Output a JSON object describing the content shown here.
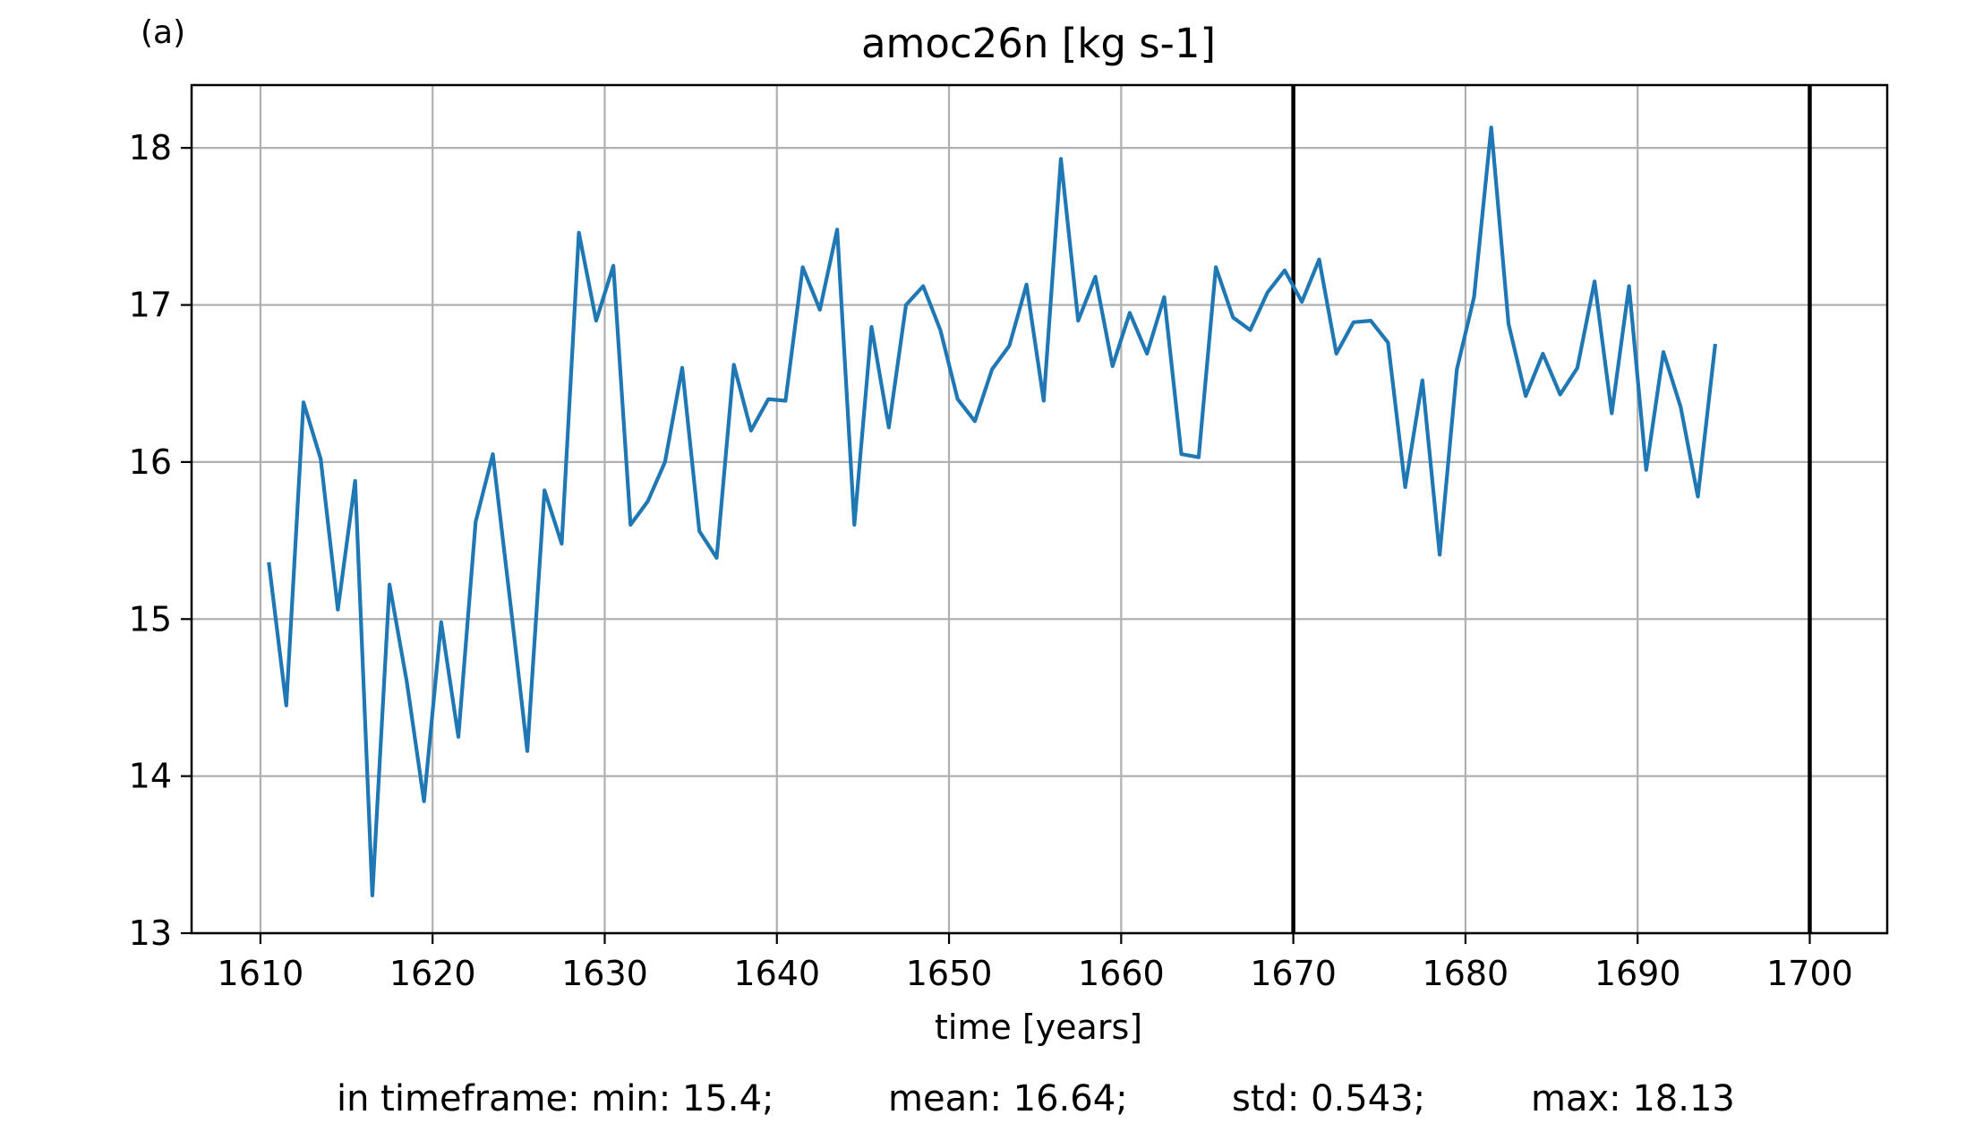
{
  "panel_label": "(a)",
  "chart_data": {
    "type": "line",
    "title": "amoc26n [kg s-1]",
    "xlabel": "time [years]",
    "ylabel": "",
    "xlim": [
      1606,
      1704.5
    ],
    "ylim": [
      13,
      18.4
    ],
    "xticks": [
      1610,
      1620,
      1630,
      1640,
      1650,
      1660,
      1670,
      1680,
      1690,
      1700
    ],
    "yticks": [
      13,
      14,
      15,
      16,
      17,
      18
    ],
    "grid": true,
    "vertical_lines": [
      1670,
      1700
    ],
    "series": [
      {
        "color": "#1f77b4",
        "x": [
          1610.5,
          1611.5,
          1612.5,
          1613.5,
          1614.5,
          1615.5,
          1616.5,
          1617.5,
          1618.5,
          1619.5,
          1620.5,
          1621.5,
          1622.5,
          1623.5,
          1624.5,
          1625.5,
          1626.5,
          1627.5,
          1628.5,
          1629.5,
          1630.5,
          1631.5,
          1632.5,
          1633.5,
          1634.5,
          1635.5,
          1636.5,
          1637.5,
          1638.5,
          1639.5,
          1640.5,
          1641.5,
          1642.5,
          1643.5,
          1644.5,
          1645.5,
          1646.5,
          1647.5,
          1648.5,
          1649.5,
          1650.5,
          1651.5,
          1652.5,
          1653.5,
          1654.5,
          1655.5,
          1656.5,
          1657.5,
          1658.5,
          1659.5,
          1660.5,
          1661.5,
          1662.5,
          1663.5,
          1664.5,
          1665.5,
          1666.5,
          1667.5,
          1668.5,
          1669.5,
          1670.5,
          1671.5,
          1672.5,
          1673.5,
          1674.5,
          1675.5,
          1676.5,
          1677.5,
          1678.5,
          1679.5,
          1680.5,
          1681.5,
          1682.5,
          1683.5,
          1684.5,
          1685.5,
          1686.5,
          1687.5,
          1688.5,
          1689.5,
          1690.5,
          1691.5,
          1692.5,
          1693.5,
          1694.5
        ],
        "y": [
          15.35,
          14.45,
          16.38,
          16.02,
          15.06,
          15.88,
          13.24,
          15.22,
          14.6,
          13.84,
          14.98,
          14.25,
          15.62,
          16.05,
          15.12,
          14.16,
          15.82,
          15.48,
          17.46,
          16.9,
          17.25,
          15.6,
          15.75,
          16.0,
          16.6,
          15.56,
          15.39,
          16.62,
          16.2,
          16.4,
          16.39,
          17.24,
          16.97,
          17.48,
          15.6,
          16.86,
          16.22,
          17.0,
          17.12,
          16.84,
          16.4,
          16.26,
          16.59,
          16.74,
          17.13,
          16.39,
          17.93,
          16.9,
          17.18,
          16.61,
          16.95,
          16.69,
          17.05,
          16.05,
          16.03,
          17.24,
          16.92,
          16.84,
          17.08,
          17.22,
          17.02,
          17.29,
          16.69,
          16.89,
          16.9,
          16.76,
          15.84,
          16.52,
          15.41,
          16.59,
          17.05,
          18.13,
          16.88,
          16.42,
          16.69,
          16.43,
          16.6,
          17.15,
          16.31,
          17.12,
          15.95,
          16.7,
          16.35,
          15.78,
          16.74
        ]
      }
    ]
  },
  "stats": {
    "prefix": "in timeframe: min: 15.4;",
    "mean": "mean: 16.64;",
    "std": "std: 0.543;",
    "max": "max: 18.13"
  }
}
